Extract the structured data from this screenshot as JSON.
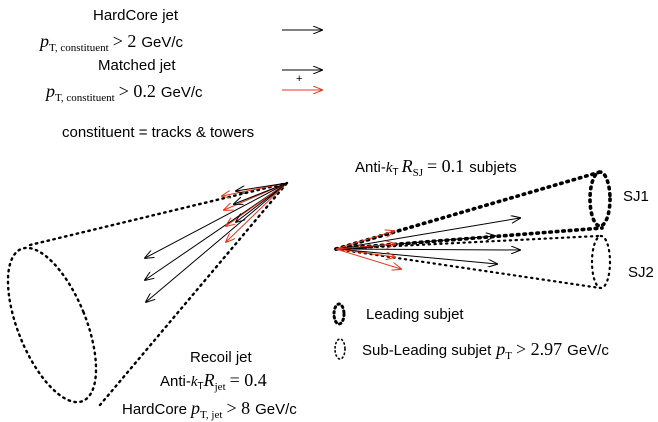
{
  "legend": {
    "hardcore_label": "HardCore jet",
    "hardcore_cut_var": "p",
    "hardcore_cut_sub": "T, constituent",
    "hardcore_cut_rel": "> 2",
    "hardcore_cut_unit": "GeV/c",
    "matched_label": "Matched jet",
    "matched_cut_var": "p",
    "matched_cut_sub": "T, constituent",
    "matched_cut_rel": "> 0.2",
    "matched_cut_unit": "GeV/c",
    "plus_sign": "+",
    "constituent_note": "constituent = tracks & towers"
  },
  "subjets": {
    "title_prefix": "Anti-",
    "title_k": "k",
    "title_t": "T",
    "title_r": "R",
    "title_r_sub": "SJ",
    "title_value": "= 0.1",
    "title_suffix": "subjets",
    "sj1_label": "SJ1",
    "sj2_label": "SJ2",
    "leading_label": "Leading subjet",
    "subleading_label": "Sub-Leading subjet",
    "subleading_var": "p",
    "subleading_sub": "T",
    "subleading_cut": "> 2.97",
    "subleading_unit": "GeV/c"
  },
  "recoil": {
    "label": "Recoil jet",
    "algo_prefix": "Anti-",
    "algo_k": "k",
    "algo_t": "T",
    "algo_r": "R",
    "algo_r_sub": "jet",
    "algo_value": "= 0.4",
    "hardcore_prefix": "HardCore",
    "hardcore_var": "p",
    "hardcore_sub": "T, jet",
    "hardcore_cut": "> 8",
    "hardcore_unit": "GeV/c"
  },
  "colors": {
    "hardcore_arrow": "#000000",
    "matched_arrow": "#e8341c",
    "outline": "#000000"
  }
}
